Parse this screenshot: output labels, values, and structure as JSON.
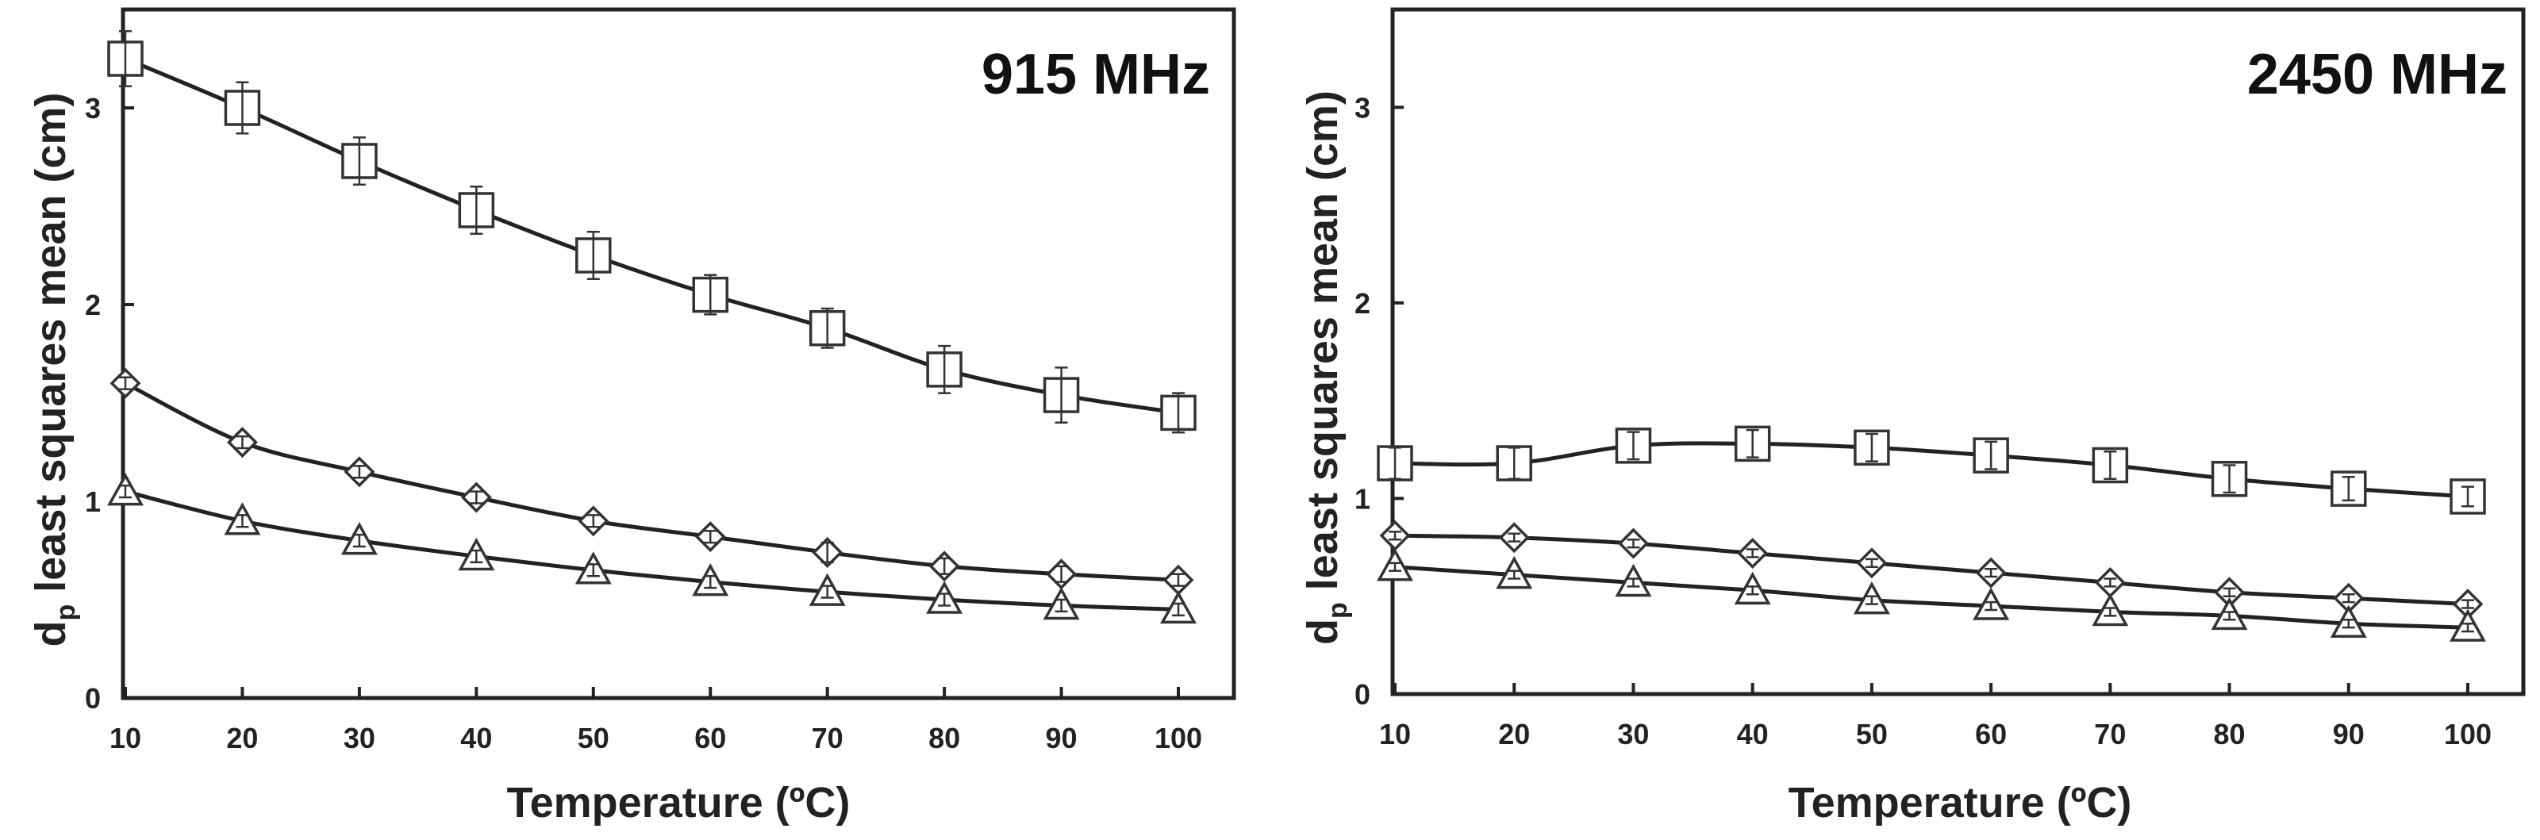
{
  "chart_data": [
    {
      "type": "line",
      "title": "915 MHz",
      "xlabel": "Temperature (ºC)",
      "ylabel": {
        "main": "d",
        "subscript": "p",
        "rest": " least squares mean (cm)"
      },
      "x": [
        10,
        20,
        30,
        40,
        50,
        60,
        70,
        80,
        90,
        100
      ],
      "xticks": [
        "10",
        "20",
        "30",
        "40",
        "50",
        "60",
        "70",
        "80",
        "90",
        "100"
      ],
      "yticks": [
        "0",
        "1",
        "2",
        "3"
      ],
      "xlim": [
        10,
        100
      ],
      "ylim": [
        0,
        3.5
      ],
      "series": [
        {
          "name": "square",
          "marker": "square",
          "values": [
            3.25,
            3.0,
            2.73,
            2.48,
            2.25,
            2.05,
            1.88,
            1.67,
            1.54,
            1.45
          ],
          "errors": [
            0.14,
            0.13,
            0.12,
            0.12,
            0.12,
            0.1,
            0.1,
            0.12,
            0.14,
            0.1
          ]
        },
        {
          "name": "diamond",
          "marker": "diamond",
          "values": [
            1.6,
            1.3,
            1.15,
            1.02,
            0.9,
            0.82,
            0.74,
            0.67,
            0.63,
            0.6
          ],
          "errors": [
            0.03,
            0.03,
            0.03,
            0.03,
            0.03,
            0.03,
            0.05,
            0.04,
            0.04,
            0.03
          ]
        },
        {
          "name": "triangle",
          "marker": "triangle",
          "values": [
            1.05,
            0.9,
            0.8,
            0.72,
            0.65,
            0.59,
            0.54,
            0.5,
            0.47,
            0.45
          ],
          "errors": [
            0.03,
            0.03,
            0.03,
            0.03,
            0.03,
            0.03,
            0.03,
            0.03,
            0.03,
            0.03
          ]
        }
      ]
    },
    {
      "type": "line",
      "title": "2450 MHz",
      "xlabel": "Temperature (ºC)",
      "ylabel": {
        "main": "d",
        "subscript": "p",
        "rest": " least squares mean (cm)"
      },
      "x": [
        10,
        20,
        30,
        40,
        50,
        60,
        70,
        80,
        90,
        100
      ],
      "xticks": [
        "10",
        "20",
        "30",
        "40",
        "50",
        "60",
        "70",
        "80",
        "90",
        "100"
      ],
      "yticks": [
        "0",
        "1",
        "2",
        "3"
      ],
      "xlim": [
        10,
        100
      ],
      "ylim": [
        0,
        3.5
      ],
      "series": [
        {
          "name": "square",
          "marker": "square",
          "values": [
            1.18,
            1.18,
            1.27,
            1.28,
            1.26,
            1.22,
            1.17,
            1.1,
            1.05,
            1.01
          ],
          "errors": [
            0.08,
            0.08,
            0.07,
            0.07,
            0.07,
            0.07,
            0.07,
            0.07,
            0.06,
            0.05
          ]
        },
        {
          "name": "diamond",
          "marker": "diamond",
          "values": [
            0.81,
            0.8,
            0.77,
            0.72,
            0.67,
            0.62,
            0.57,
            0.52,
            0.49,
            0.46
          ],
          "errors": [
            0.02,
            0.02,
            0.02,
            0.02,
            0.02,
            0.02,
            0.02,
            0.02,
            0.02,
            0.02
          ]
        },
        {
          "name": "triangle",
          "marker": "triangle",
          "values": [
            0.65,
            0.61,
            0.57,
            0.53,
            0.48,
            0.45,
            0.42,
            0.4,
            0.36,
            0.34
          ],
          "errors": [
            0.02,
            0.02,
            0.02,
            0.02,
            0.02,
            0.02,
            0.02,
            0.02,
            0.02,
            0.02
          ]
        }
      ]
    }
  ]
}
